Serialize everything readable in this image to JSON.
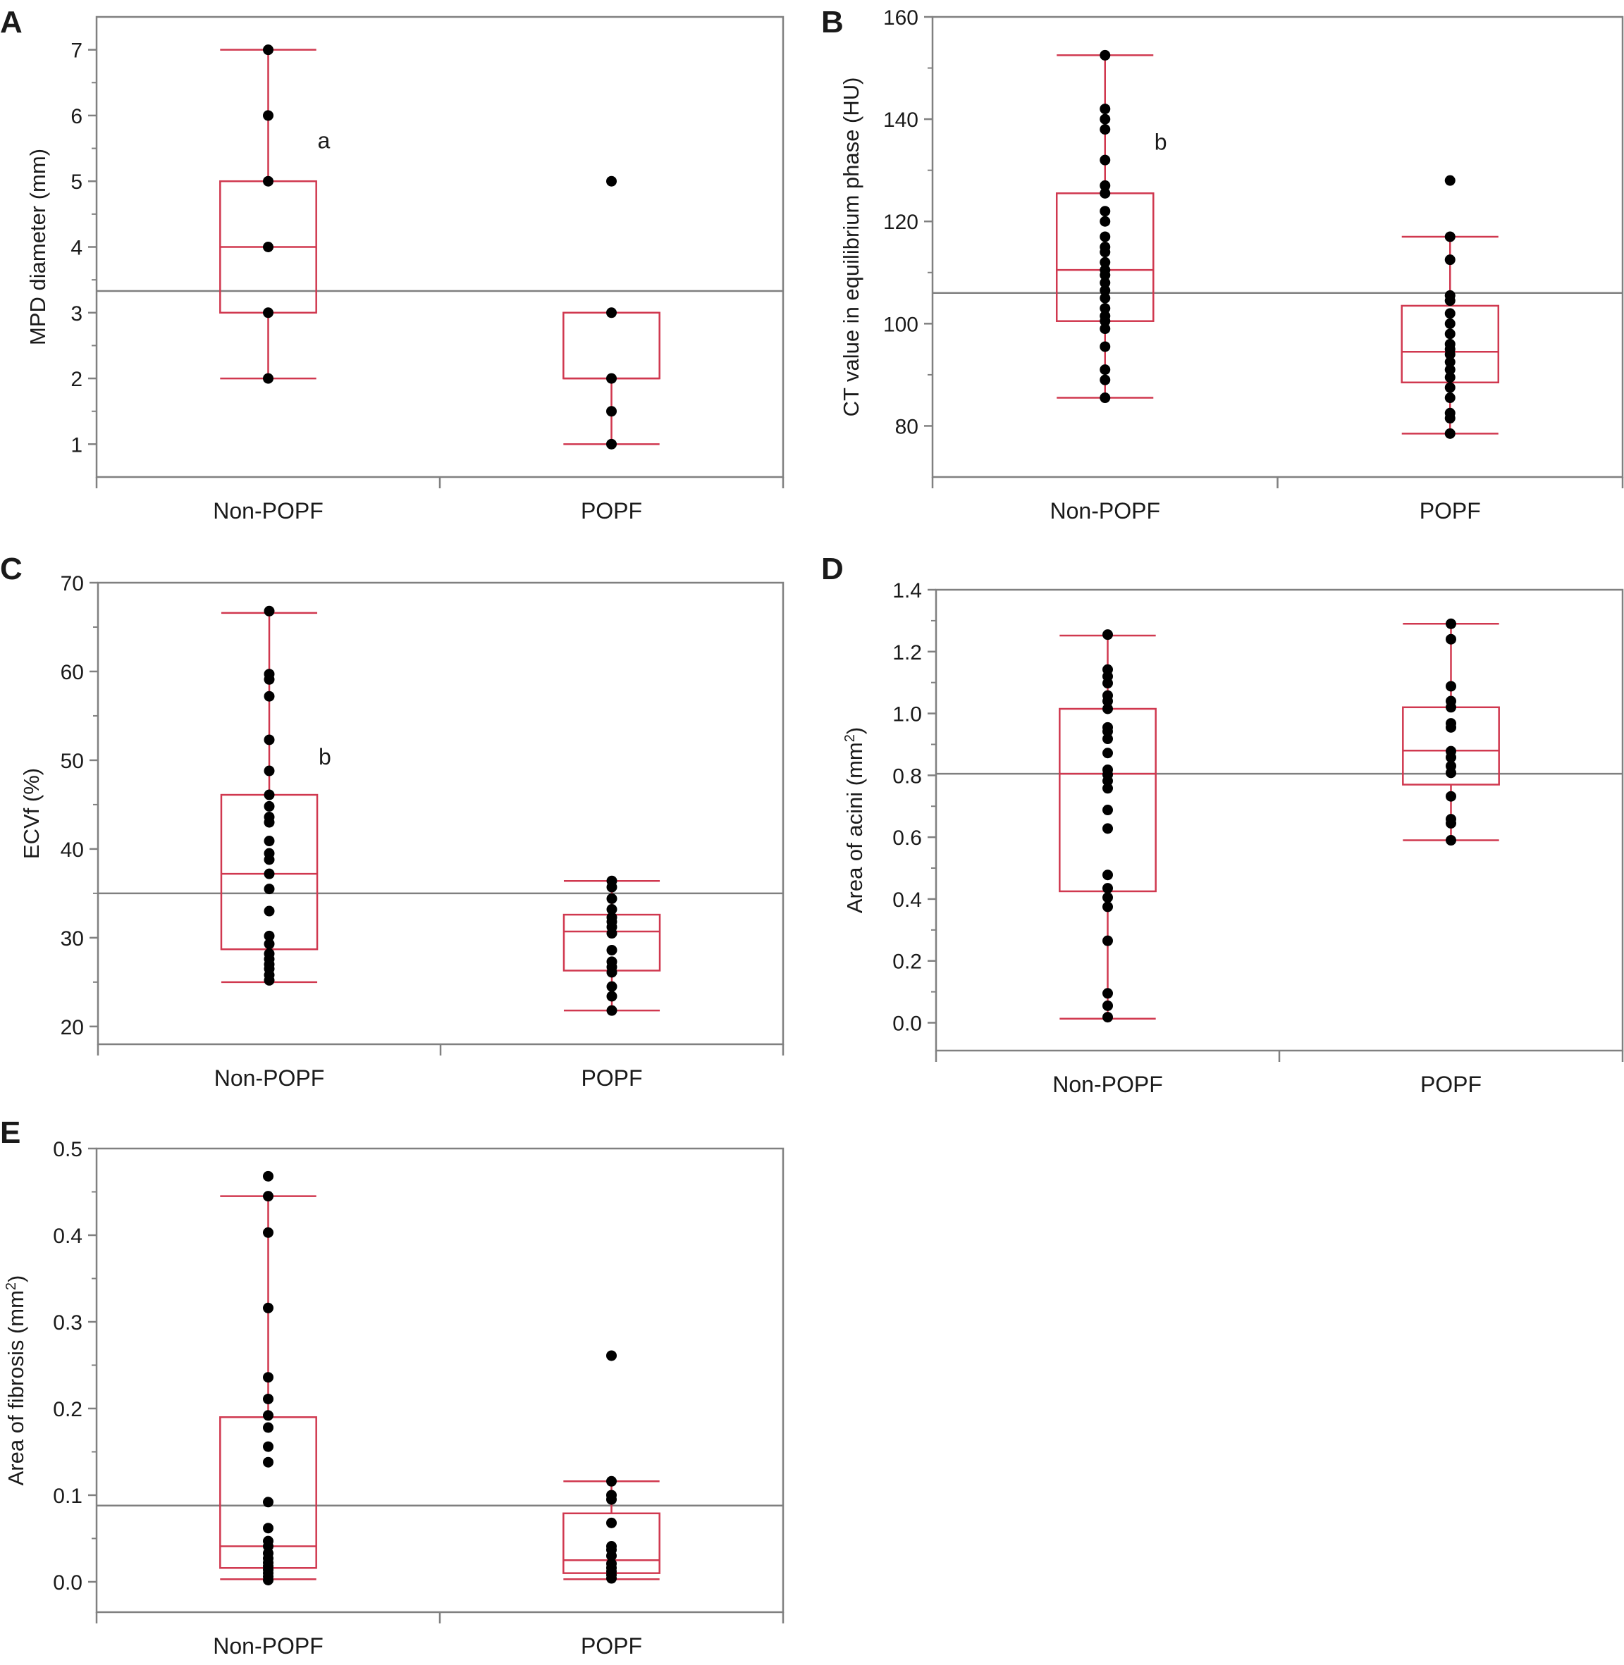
{
  "colors": {
    "box": "#d0384f",
    "point": "#000000",
    "frame": "#808080",
    "meanline": "#7f7f7f"
  },
  "chart_data": [
    {
      "panel": "A",
      "type": "box",
      "ylabel": "MPD diameter (mm)",
      "ylabel_sup": "",
      "categories": [
        "Non-POPF",
        "POPF"
      ],
      "ylim": [
        0.5,
        7.5
      ],
      "yticks": [
        1,
        2,
        3,
        4,
        5,
        6,
        7
      ],
      "tick_decimals": 0,
      "reference_line": 3.33,
      "annotation": {
        "text": "a",
        "category_index": 0,
        "y": 5.5
      },
      "groups": [
        {
          "name": "Non-POPF",
          "q1": 3,
          "median": 4,
          "q3": 5,
          "whisker_low": 2,
          "whisker_high": 7,
          "points": [
            2,
            3,
            4,
            5,
            6,
            7
          ]
        },
        {
          "name": "POPF",
          "q1": 2,
          "median": 2,
          "q3": 3,
          "whisker_low": 1,
          "whisker_high": 3,
          "points": [
            1,
            1.5,
            2,
            3,
            5
          ]
        }
      ]
    },
    {
      "panel": "B",
      "type": "box",
      "ylabel": "CT value in equilibrium phase (HU)",
      "ylabel_sup": "",
      "categories": [
        "Non-POPF",
        "POPF"
      ],
      "ylim": [
        70,
        160
      ],
      "yticks": [
        80,
        100,
        120,
        140,
        160
      ],
      "tick_decimals": 0,
      "reference_line": 106,
      "annotation": {
        "text": "b",
        "category_index": 0,
        "y": 134
      },
      "groups": [
        {
          "name": "Non-POPF",
          "q1": 100.5,
          "median": 110.5,
          "q3": 125.5,
          "whisker_low": 85.5,
          "whisker_high": 152.5,
          "points": [
            85.5,
            89,
            91,
            95.5,
            99,
            100.5,
            101.5,
            103,
            105,
            106.5,
            108,
            109.5,
            110.5,
            112,
            114,
            115,
            117,
            120,
            122,
            125.5,
            127,
            132,
            138,
            140,
            142,
            152.5
          ]
        },
        {
          "name": "POPF",
          "q1": 88.5,
          "median": 94.5,
          "q3": 103.5,
          "whisker_low": 78.5,
          "whisker_high": 117,
          "points": [
            78.5,
            81.5,
            82.5,
            85.5,
            87.5,
            89.5,
            91,
            92.5,
            94,
            95,
            96,
            98,
            100,
            102,
            104.5,
            105.5,
            112.5,
            117,
            128
          ]
        }
      ]
    },
    {
      "panel": "C",
      "type": "box",
      "ylabel": "ECVf (%)",
      "ylabel_sup": "",
      "categories": [
        "Non-POPF",
        "POPF"
      ],
      "ylim": [
        18,
        70
      ],
      "yticks": [
        20,
        30,
        40,
        50,
        60,
        70
      ],
      "tick_decimals": 0,
      "reference_line": 35,
      "annotation": {
        "text": "b",
        "category_index": 0,
        "y": 49.5
      },
      "groups": [
        {
          "name": "Non-POPF",
          "q1": 28.7,
          "median": 37.2,
          "q3": 46.1,
          "whisker_low": 25,
          "whisker_high": 66.6,
          "points": [
            25.2,
            25.8,
            26.5,
            27,
            27.6,
            28.2,
            29.3,
            30.2,
            33,
            35.5,
            37.2,
            38.8,
            39.5,
            40.9,
            43,
            43.6,
            44.8,
            46.1,
            48.8,
            52.3,
            57.2,
            59.1,
            59.7,
            66.8
          ]
        },
        {
          "name": "POPF",
          "q1": 26.3,
          "median": 30.7,
          "q3": 32.6,
          "whisker_low": 21.8,
          "whisker_high": 36.4,
          "points": [
            21.8,
            23.4,
            24.5,
            26.1,
            26.7,
            27.3,
            28.6,
            30.5,
            31.2,
            31.8,
            32.3,
            33.2,
            34.4,
            35.7,
            36.4
          ]
        }
      ]
    },
    {
      "panel": "D",
      "type": "box",
      "ylabel": "Area of acini (mm",
      "ylabel_sup": "2",
      "ylabel_suffix": ")",
      "categories": [
        "Non-POPF",
        "POPF"
      ],
      "ylim": [
        -0.09,
        1.4
      ],
      "yticks": [
        0.0,
        0.2,
        0.4,
        0.6,
        0.8,
        1.0,
        1.2,
        1.4
      ],
      "tick_decimals": 1,
      "reference_line": 0.805,
      "annotation": null,
      "groups": [
        {
          "name": "Non-POPF",
          "q1": 0.425,
          "median": 0.805,
          "q3": 1.015,
          "whisker_low": 0.013,
          "whisker_high": 1.252,
          "points": [
            0.018,
            0.055,
            0.095,
            0.265,
            0.375,
            0.405,
            0.435,
            0.478,
            0.628,
            0.688,
            0.758,
            0.782,
            0.802,
            0.818,
            0.872,
            0.918,
            0.942,
            0.955,
            1.015,
            1.04,
            1.058,
            1.098,
            1.12,
            1.142,
            1.255
          ]
        },
        {
          "name": "POPF",
          "q1": 0.77,
          "median": 0.88,
          "q3": 1.02,
          "whisker_low": 0.59,
          "whisker_high": 1.29,
          "points": [
            0.59,
            0.645,
            0.658,
            0.732,
            0.808,
            0.83,
            0.858,
            0.878,
            0.955,
            0.968,
            1.02,
            1.04,
            1.088,
            1.24,
            1.29
          ]
        }
      ]
    },
    {
      "panel": "E",
      "type": "box",
      "ylabel": "Area of fibrosis (mm",
      "ylabel_sup": "2",
      "ylabel_suffix": ")",
      "categories": [
        "Non-POPF",
        "POPF"
      ],
      "ylim": [
        -0.035,
        0.5
      ],
      "yticks": [
        0.0,
        0.1,
        0.2,
        0.3,
        0.4,
        0.5
      ],
      "tick_decimals": 1,
      "reference_line": 0.088,
      "annotation": null,
      "groups": [
        {
          "name": "Non-POPF",
          "q1": 0.016,
          "median": 0.041,
          "q3": 0.19,
          "whisker_low": 0.003,
          "whisker_high": 0.445,
          "points": [
            0.002,
            0.006,
            0.01,
            0.014,
            0.018,
            0.022,
            0.027,
            0.033,
            0.041,
            0.047,
            0.062,
            0.092,
            0.138,
            0.156,
            0.178,
            0.192,
            0.211,
            0.236,
            0.316,
            0.403,
            0.445,
            0.468
          ]
        },
        {
          "name": "POPF",
          "q1": 0.01,
          "median": 0.025,
          "q3": 0.079,
          "whisker_low": 0.003,
          "whisker_high": 0.116,
          "points": [
            0.004,
            0.008,
            0.012,
            0.016,
            0.021,
            0.03,
            0.037,
            0.041,
            0.068,
            0.095,
            0.1,
            0.116,
            0.261
          ]
        }
      ]
    }
  ]
}
